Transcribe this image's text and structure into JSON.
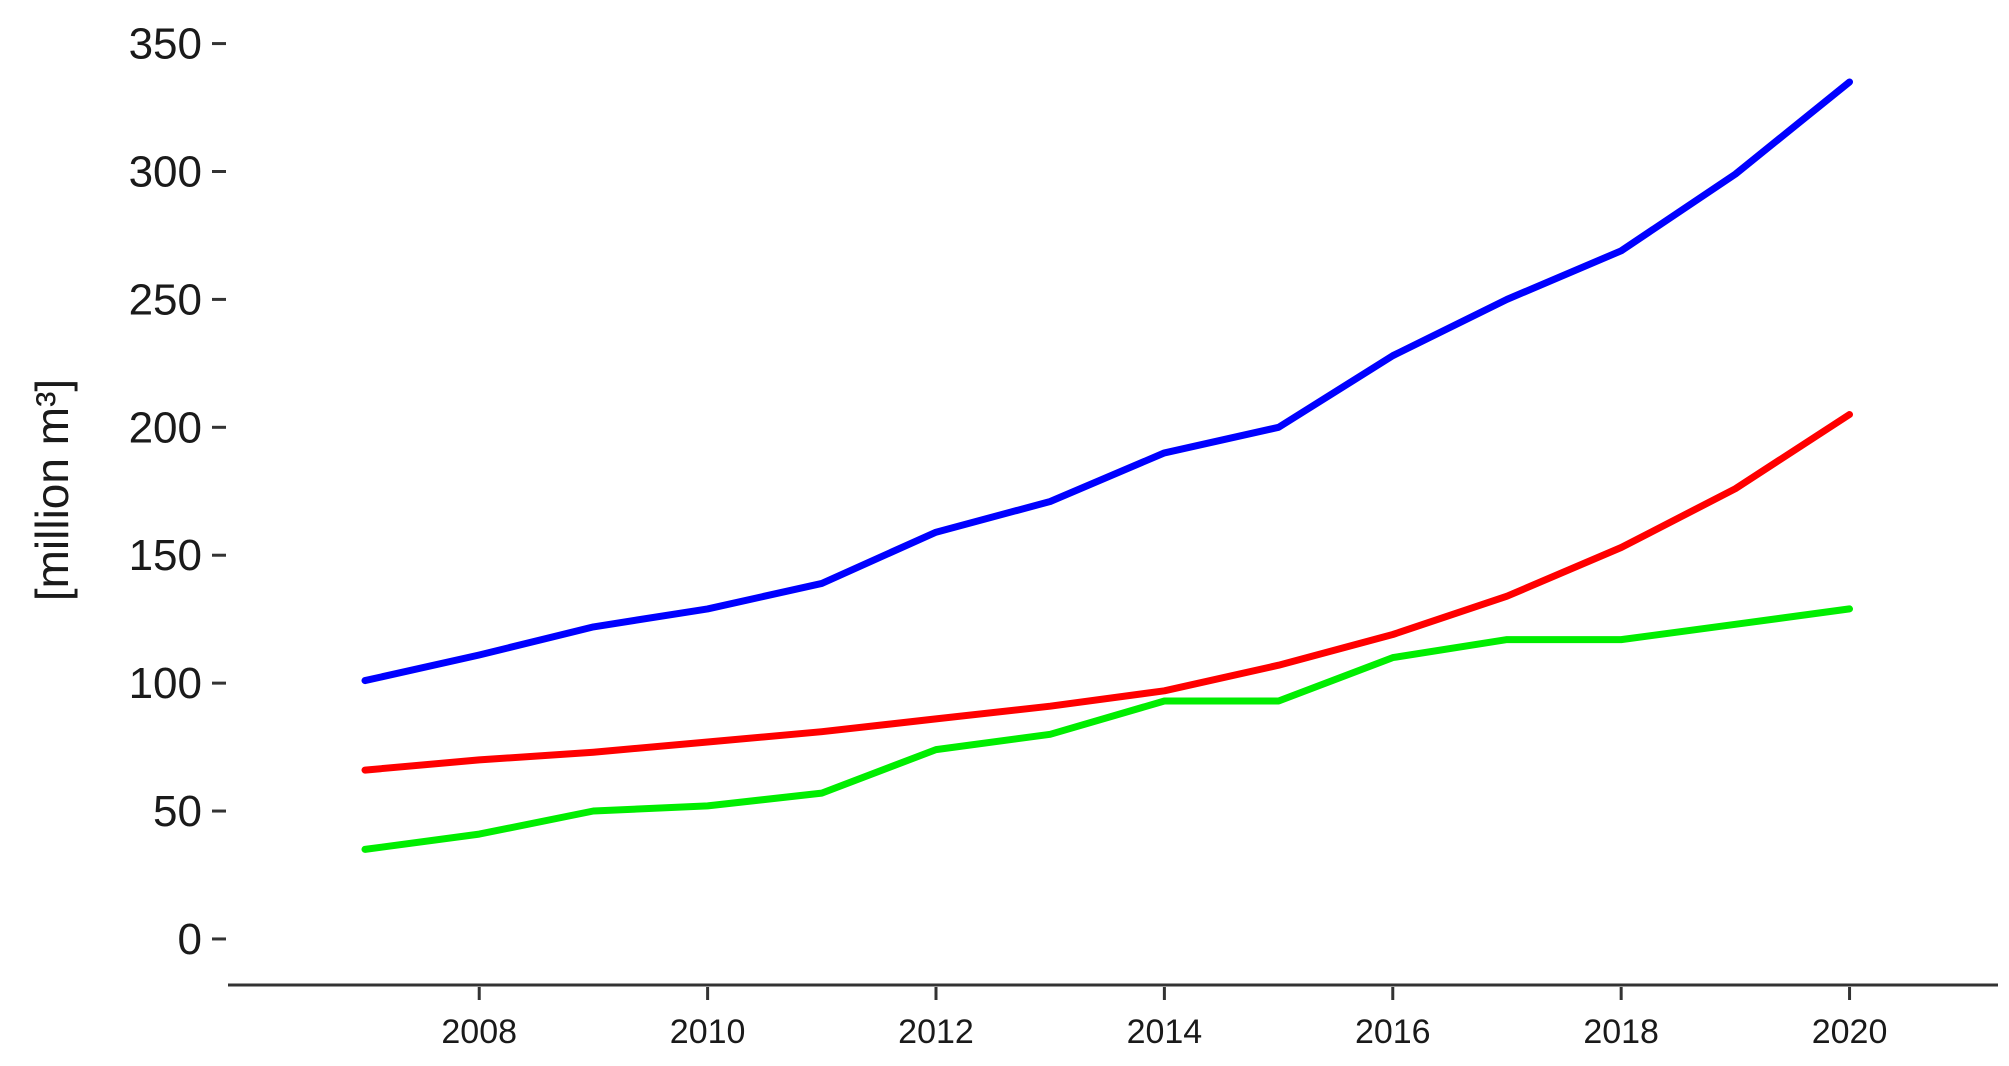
{
  "chart_data": {
    "type": "line",
    "title": "",
    "xlabel": "",
    "ylabel": "[million m³]",
    "x": [
      2007,
      2008,
      2009,
      2010,
      2011,
      2012,
      2013,
      2014,
      2015,
      2016,
      2017,
      2018,
      2019,
      2020
    ],
    "xlim": [
      2005.8,
      2021.3
    ],
    "ylim": [
      -18,
      360
    ],
    "xticks": [
      2008,
      2010,
      2012,
      2014,
      2016,
      2018,
      2020
    ],
    "yticks": [
      0,
      50,
      100,
      150,
      200,
      250,
      300,
      350
    ],
    "grid": false,
    "legend": "none",
    "series": [
      {
        "color": "#0000ff",
        "values": [
          101,
          111,
          122,
          129,
          139,
          159,
          171,
          190,
          200,
          228,
          250,
          269,
          299,
          335
        ]
      },
      {
        "color": "#ff0000",
        "values": [
          66,
          70,
          73,
          77,
          81,
          86,
          91,
          97,
          107,
          119,
          134,
          153,
          176,
          205
        ]
      },
      {
        "color": "#00ee00",
        "values": [
          35,
          41,
          50,
          52,
          57,
          74,
          80,
          93,
          93,
          110,
          117,
          117,
          123,
          129
        ]
      }
    ]
  }
}
